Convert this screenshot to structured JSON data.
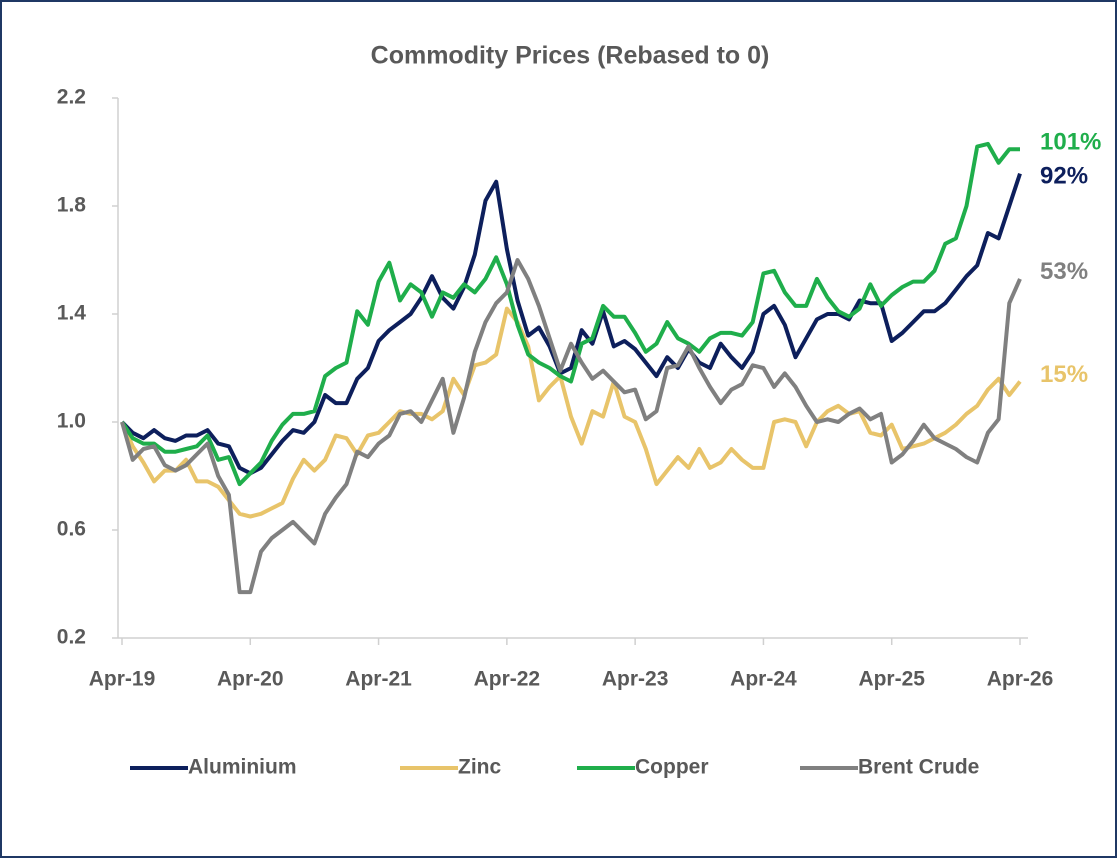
{
  "chart_data": {
    "type": "line",
    "title": "Commodity Prices (Rebased to 0)",
    "categories": [
      "Apr-19",
      null,
      null,
      null,
      null,
      null,
      null,
      null,
      null,
      null,
      null,
      null,
      "Apr-20",
      null,
      null,
      null,
      null,
      null,
      null,
      null,
      null,
      null,
      null,
      null,
      "Apr-21",
      null,
      null,
      null,
      null,
      null,
      null,
      null,
      null,
      null,
      null,
      null,
      "Apr-22",
      null,
      null,
      null,
      null,
      null,
      null,
      null,
      null,
      null,
      null,
      null,
      "Apr-23",
      null,
      null,
      null,
      null,
      null,
      null,
      null,
      null,
      null,
      null,
      null,
      "Apr-24",
      null,
      null,
      null,
      null,
      null,
      null,
      null,
      null,
      null,
      null,
      null,
      "Apr-25",
      null,
      null,
      null,
      null,
      null,
      null,
      null,
      null,
      null,
      null,
      null,
      "Apr-26"
    ],
    "series": [
      {
        "name": "Aluminium",
        "color": "#0d1f5c",
        "end_label": "92%",
        "values": [
          1.0,
          0.96,
          0.94,
          0.97,
          0.94,
          0.93,
          0.95,
          0.95,
          0.97,
          0.92,
          0.91,
          0.83,
          0.81,
          0.83,
          0.88,
          0.93,
          0.97,
          0.96,
          1.0,
          1.1,
          1.07,
          1.07,
          1.16,
          1.2,
          1.3,
          1.34,
          1.37,
          1.4,
          1.46,
          1.54,
          1.46,
          1.42,
          1.5,
          1.62,
          1.82,
          1.89,
          1.64,
          1.45,
          1.32,
          1.35,
          1.28,
          1.18,
          1.2,
          1.34,
          1.29,
          1.41,
          1.28,
          1.3,
          1.27,
          1.22,
          1.17,
          1.24,
          1.2,
          1.27,
          1.22,
          1.2,
          1.29,
          1.24,
          1.2,
          1.26,
          1.4,
          1.43,
          1.36,
          1.24,
          1.31,
          1.38,
          1.4,
          1.4,
          1.38,
          1.45,
          1.44,
          1.44,
          1.3,
          1.33,
          1.37,
          1.41,
          1.41,
          1.44,
          1.49,
          1.54,
          1.58,
          1.7,
          1.68,
          1.8,
          1.92
        ]
      },
      {
        "name": "Zinc",
        "color": "#e8c46a",
        "end_label": "15%",
        "values": [
          1.0,
          0.91,
          0.85,
          0.78,
          0.82,
          0.82,
          0.86,
          0.78,
          0.78,
          0.76,
          0.71,
          0.66,
          0.65,
          0.66,
          0.68,
          0.7,
          0.79,
          0.86,
          0.82,
          0.86,
          0.95,
          0.94,
          0.88,
          0.95,
          0.96,
          1.0,
          1.04,
          1.03,
          1.03,
          1.01,
          1.04,
          1.16,
          1.1,
          1.21,
          1.22,
          1.25,
          1.42,
          1.37,
          1.28,
          1.08,
          1.13,
          1.17,
          1.02,
          0.92,
          1.04,
          1.02,
          1.15,
          1.02,
          1.0,
          0.9,
          0.77,
          0.82,
          0.87,
          0.83,
          0.9,
          0.83,
          0.85,
          0.9,
          0.86,
          0.83,
          0.83,
          1.0,
          1.01,
          1.0,
          0.91,
          1.0,
          1.04,
          1.06,
          1.03,
          1.04,
          0.96,
          0.95,
          0.99,
          0.9,
          0.91,
          0.92,
          0.94,
          0.96,
          0.99,
          1.03,
          1.06,
          1.12,
          1.16,
          1.1,
          1.15
        ]
      },
      {
        "name": "Copper",
        "color": "#1fae4b",
        "end_label": "101%",
        "values": [
          1.0,
          0.94,
          0.92,
          0.92,
          0.89,
          0.89,
          0.9,
          0.91,
          0.95,
          0.86,
          0.87,
          0.77,
          0.81,
          0.85,
          0.93,
          0.99,
          1.03,
          1.03,
          1.04,
          1.17,
          1.2,
          1.22,
          1.41,
          1.36,
          1.52,
          1.59,
          1.45,
          1.51,
          1.48,
          1.39,
          1.48,
          1.46,
          1.51,
          1.48,
          1.53,
          1.61,
          1.51,
          1.36,
          1.25,
          1.22,
          1.2,
          1.17,
          1.15,
          1.29,
          1.31,
          1.43,
          1.39,
          1.39,
          1.33,
          1.26,
          1.29,
          1.37,
          1.31,
          1.29,
          1.26,
          1.31,
          1.33,
          1.33,
          1.32,
          1.37,
          1.55,
          1.56,
          1.48,
          1.43,
          1.43,
          1.53,
          1.46,
          1.41,
          1.39,
          1.42,
          1.51,
          1.43,
          1.47,
          1.5,
          1.52,
          1.52,
          1.56,
          1.66,
          1.68,
          1.8,
          2.02,
          2.03,
          1.96,
          2.01,
          2.01
        ]
      },
      {
        "name": "Brent Crude",
        "color": "#808080",
        "end_label": "53%",
        "values": [
          1.0,
          0.86,
          0.9,
          0.91,
          0.84,
          0.82,
          0.84,
          0.88,
          0.92,
          0.8,
          0.73,
          0.37,
          0.37,
          0.52,
          0.57,
          0.6,
          0.63,
          0.59,
          0.55,
          0.66,
          0.72,
          0.77,
          0.89,
          0.87,
          0.92,
          0.95,
          1.03,
          1.04,
          1.0,
          1.08,
          1.16,
          0.96,
          1.09,
          1.26,
          1.37,
          1.44,
          1.48,
          1.6,
          1.53,
          1.43,
          1.31,
          1.19,
          1.29,
          1.22,
          1.16,
          1.19,
          1.15,
          1.11,
          1.12,
          1.01,
          1.04,
          1.2,
          1.21,
          1.28,
          1.2,
          1.13,
          1.07,
          1.12,
          1.14,
          1.21,
          1.2,
          1.13,
          1.18,
          1.13,
          1.06,
          1.0,
          1.01,
          1.0,
          1.03,
          1.05,
          1.01,
          1.03,
          0.85,
          0.88,
          0.93,
          0.99,
          0.94,
          0.92,
          0.9,
          0.87,
          0.85,
          0.96,
          1.01,
          1.44,
          1.53
        ]
      }
    ],
    "ylim": [
      0.2,
      2.2
    ],
    "yticks": [
      0.2,
      0.6,
      {
        "value": 1,
        "label": "1.0"
      },
      1.4,
      1.8,
      2.2
    ],
    "grid": false,
    "legend": "bottom"
  }
}
